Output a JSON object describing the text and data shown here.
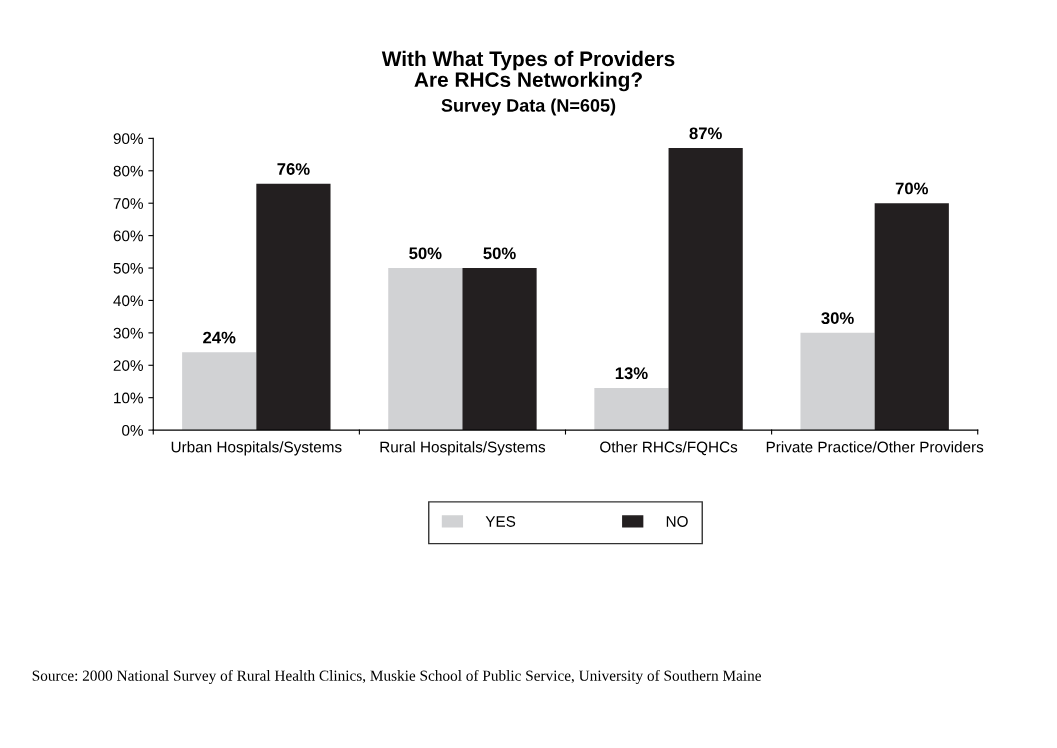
{
  "chart_data": {
    "type": "bar",
    "title": "With What Types of Providers\nAre RHCs Networking?",
    "subtitle": "Survey Data (N=605)",
    "categories": [
      "Urban Hospitals/Systems",
      "Rural Hospitals/Systems",
      "Other RHCs/FQHCs",
      "Private Practice/Other Providers"
    ],
    "series": [
      {
        "name": "YES",
        "color": "#d1d2d4",
        "values": [
          24,
          50,
          13,
          30
        ]
      },
      {
        "name": "NO",
        "color": "#231f20",
        "values": [
          76,
          50,
          87,
          70
        ]
      }
    ],
    "ylim": [
      0,
      90
    ],
    "yticks": [
      {
        "value": 0,
        "label": "0%"
      },
      {
        "value": 10,
        "label": "10%"
      },
      {
        "value": 20,
        "label": "20%"
      },
      {
        "value": 30,
        "label": "30%"
      },
      {
        "value": 40,
        "label": "40%"
      },
      {
        "value": 50,
        "label": "50%"
      },
      {
        "value": 60,
        "label": "60%"
      },
      {
        "value": 70,
        "label": "70%"
      },
      {
        "value": 80,
        "label": "80%"
      },
      {
        "value": 90,
        "label": "90%"
      }
    ],
    "value_labels": [
      [
        "24%",
        "50%",
        "13%",
        "30%"
      ],
      [
        "76%",
        "50%",
        "87%",
        "70%"
      ]
    ],
    "grid": false,
    "legend": "bottom",
    "annotations": [
      "Source: 2000 National Survey of Rural Health Clinics, Muskie School of Public Service, University of Southern Maine"
    ]
  }
}
